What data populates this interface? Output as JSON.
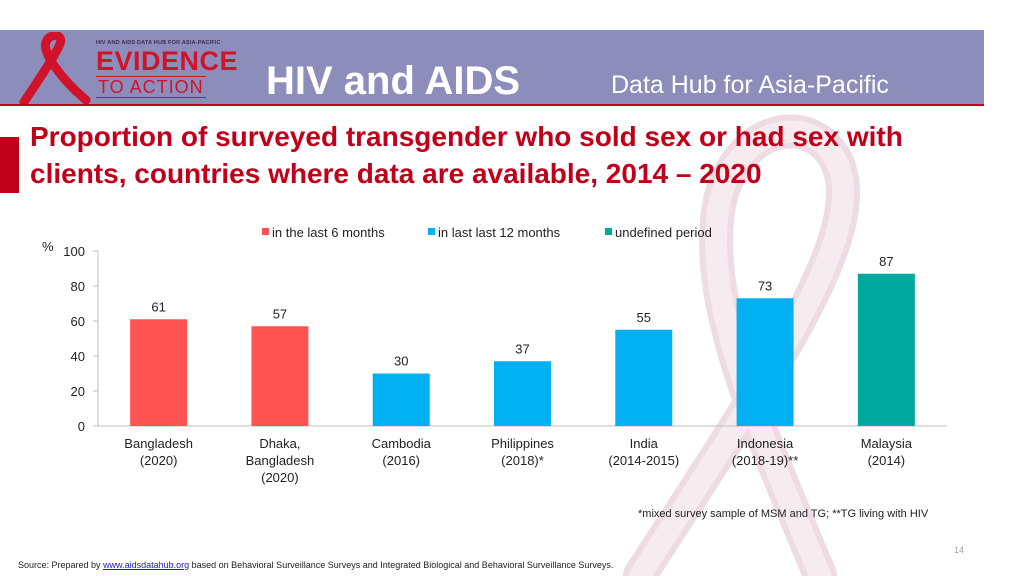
{
  "header": {
    "logo_tagline": "HIV AND AIDS DATA HUB FOR ASIA-PACIFIC",
    "logo_line1": "EVIDENCE",
    "logo_line2": "TO ACTION",
    "title": "HIV and AIDS",
    "subtitle": "Data Hub for Asia-Pacific"
  },
  "slide": {
    "title": "Proportion of surveyed transgender who sold sex or had sex with clients, countries where data are available, 2014 – 2020",
    "footnote": "*mixed survey sample of MSM and TG; **TG living with HIV",
    "page_number": "14",
    "source_prefix": "Source: Prepared by ",
    "source_link": "www.aidsdatahub.org",
    "source_suffix": " based on Behavioral Surveillance Surveys and Integrated Biological and Behavioral Surveillance Surveys."
  },
  "colors": {
    "header_band": "#8d8dbb",
    "accent_red": "#c0001a",
    "series_6m": "#fe5353",
    "series_12m": "#00b0f0",
    "series_undef": "#00a99d"
  },
  "chart_data": {
    "type": "bar",
    "title": "",
    "ylabel": "%",
    "xlabel": "",
    "ylim": [
      0,
      100
    ],
    "yticks": [
      0,
      20,
      40,
      60,
      80,
      100
    ],
    "grid": false,
    "legend_position": "top",
    "series": [
      {
        "name": "in the last 6 months",
        "color": "#fe5353"
      },
      {
        "name": "in last last 12 months",
        "color": "#00b0f0"
      },
      {
        "name": "undefined period",
        "color": "#00a99d"
      }
    ],
    "bars": [
      {
        "category": [
          "Bangladesh",
          "(2020)"
        ],
        "value": 61,
        "series": 0
      },
      {
        "category": [
          "Dhaka,",
          "Bangladesh",
          "(2020)"
        ],
        "value": 57,
        "series": 0
      },
      {
        "category": [
          "Cambodia",
          "(2016)"
        ],
        "value": 30,
        "series": 1
      },
      {
        "category": [
          "Philippines",
          "(2018)*"
        ],
        "value": 37,
        "series": 1
      },
      {
        "category": [
          "India",
          "(2014-2015)"
        ],
        "value": 55,
        "series": 1
      },
      {
        "category": [
          "Indonesia",
          "(2018-19)**"
        ],
        "value": 73,
        "series": 1
      },
      {
        "category": [
          "Malaysia",
          "(2014)"
        ],
        "value": 87,
        "series": 2
      }
    ]
  }
}
